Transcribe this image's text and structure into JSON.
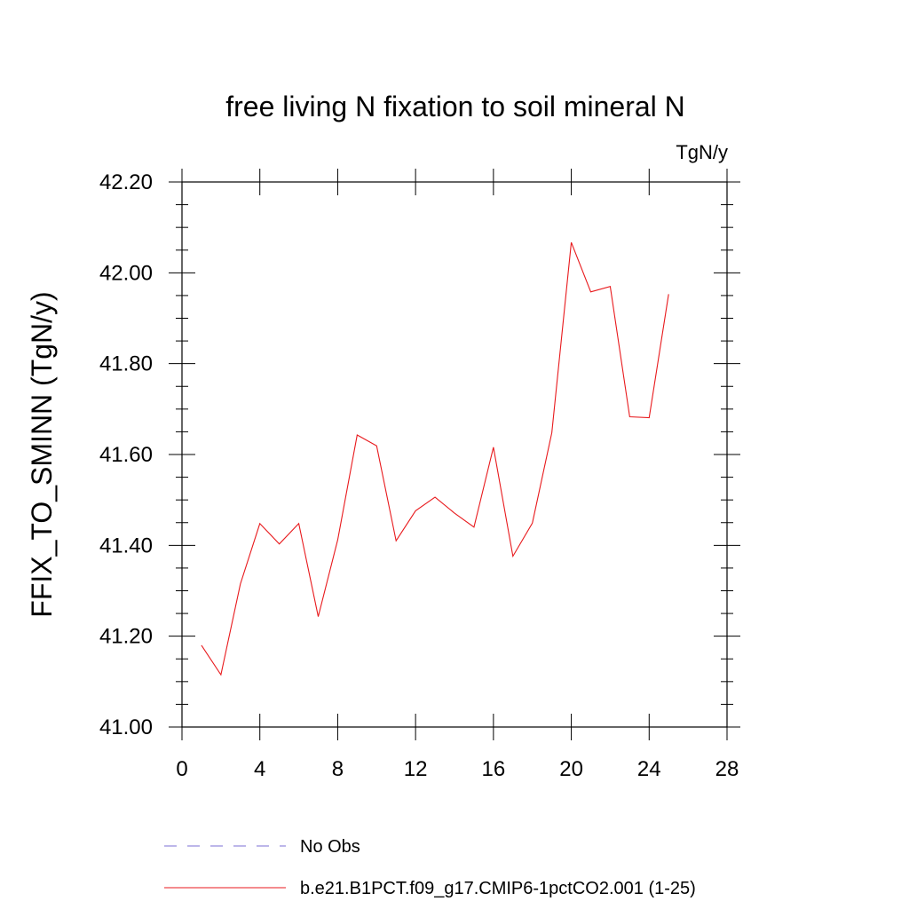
{
  "chart_data": {
    "type": "line",
    "title": "free living N fixation to soil mineral N",
    "units_label": "TgN/y",
    "ylabel": "FFIX_TO_SMINN  (TgN/y)",
    "xlabel": "",
    "xlim": [
      0,
      28
    ],
    "ylim": [
      41.0,
      42.2
    ],
    "x_ticks": [
      "0",
      "4",
      "8",
      "12",
      "16",
      "20",
      "24",
      "28"
    ],
    "y_ticks": [
      "41.00",
      "41.20",
      "41.40",
      "41.60",
      "41.80",
      "42.00",
      "42.20"
    ],
    "grid": false,
    "legend_placement": "bottom",
    "series": [
      {
        "name": "No Obs",
        "color": "#7b6fd6",
        "dash": "dashed",
        "x": [],
        "values": []
      },
      {
        "name": "b.e21.B1PCT.f09_g17.CMIP6-1pctCO2.001 (1-25)",
        "color": "#e8191c",
        "dash": "solid",
        "x": [
          1,
          2,
          3,
          4,
          5,
          6,
          7,
          8,
          9,
          10,
          11,
          12,
          13,
          14,
          15,
          16,
          17,
          18,
          19,
          20,
          21,
          22,
          23,
          24,
          25
        ],
        "values": [
          41.18,
          41.115,
          41.315,
          41.448,
          41.403,
          41.448,
          41.243,
          41.412,
          41.643,
          41.619,
          41.41,
          41.476,
          41.506,
          41.471,
          41.44,
          41.616,
          41.376,
          41.449,
          41.648,
          42.067,
          41.958,
          41.97,
          41.683,
          41.681,
          41.953
        ]
      }
    ]
  }
}
